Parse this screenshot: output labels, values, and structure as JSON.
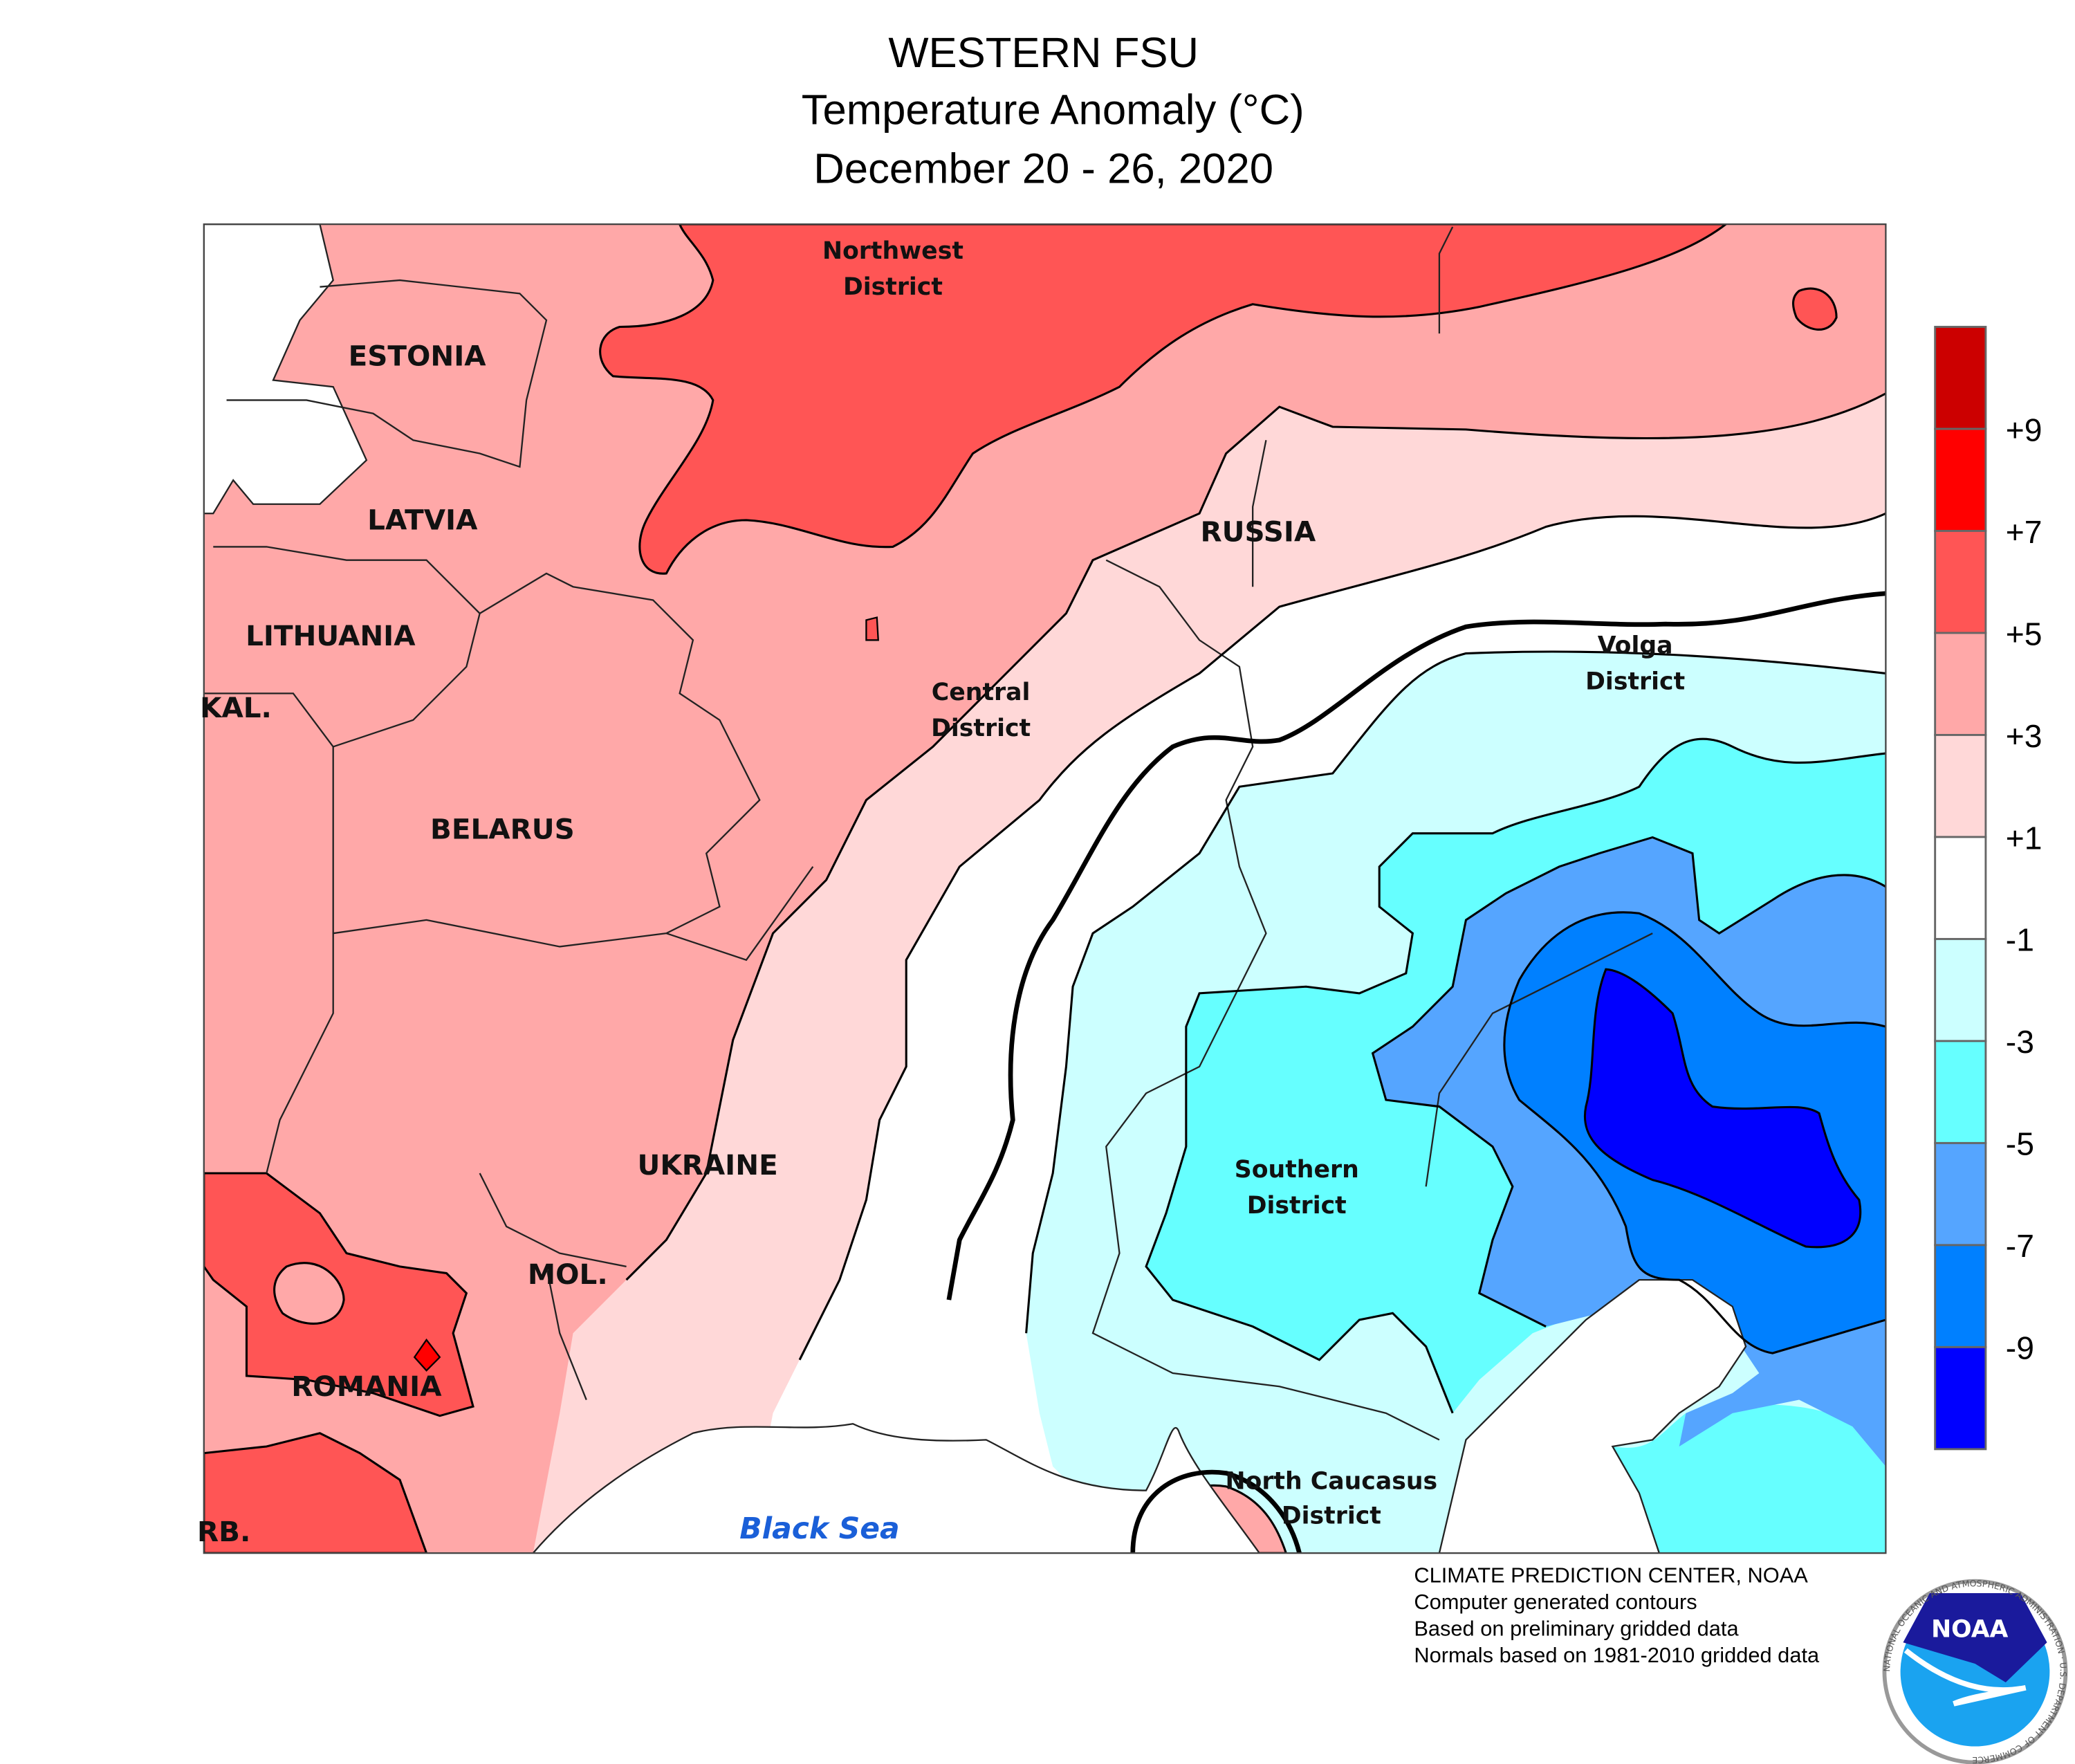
{
  "title": {
    "line1": "WESTERN FSU",
    "line2": "Temperature Anomaly (°C)",
    "line3": "December 20 - 26, 2020"
  },
  "map": {
    "country_labels": [
      "ESTONIA",
      "LATVIA",
      "LITHUANIA",
      "KAL.",
      "BELARUS",
      "UKRAINE",
      "MOL.",
      "ROMANIA",
      "RB.",
      "RUSSIA"
    ],
    "district_labels": {
      "northwest": [
        "Northwest",
        "District"
      ],
      "central": [
        "Central",
        "District"
      ],
      "volga": [
        "Volga",
        "District"
      ],
      "southern": [
        "Southern",
        "District"
      ],
      "north_caucasus": [
        "North Caucasus",
        "District"
      ]
    },
    "sea_label": "Black Sea"
  },
  "legend": {
    "bins": [
      {
        "range": "> +9",
        "color": "#CC0000"
      },
      {
        "range": "+7 to +9",
        "color": "#FF0000"
      },
      {
        "range": "+5 to +7",
        "color": "#FF5555"
      },
      {
        "range": "+3 to +5",
        "color": "#FFA8A8"
      },
      {
        "range": "+1 to +3",
        "color": "#FFD8D8"
      },
      {
        "range": "-1 to +1",
        "color": "#FFFFFF"
      },
      {
        "range": "-3 to -1",
        "color": "#CCFFFF"
      },
      {
        "range": "-5 to -3",
        "color": "#66FFFF"
      },
      {
        "range": "-7 to -5",
        "color": "#55A5FF"
      },
      {
        "range": "-9 to -7",
        "color": "#0080FF"
      },
      {
        "range": "< -9",
        "color": "#0000FF"
      }
    ],
    "ticks": [
      "+9",
      "+7",
      "+5",
      "+3",
      "+1",
      "-1",
      "-3",
      "-5",
      "-7",
      "-9"
    ]
  },
  "footer": {
    "lines": [
      "CLIMATE PREDICTION CENTER, NOAA",
      "Computer generated contours",
      "Based on preliminary gridded data",
      "Normals based on 1981-2010 gridded data"
    ],
    "logo_text": "NOAA",
    "logo_ring_text": "NATIONAL OCEANIC AND ATMOSPHERIC ADMINISTRATION · U.S. DEPARTMENT OF COMMERCE"
  }
}
